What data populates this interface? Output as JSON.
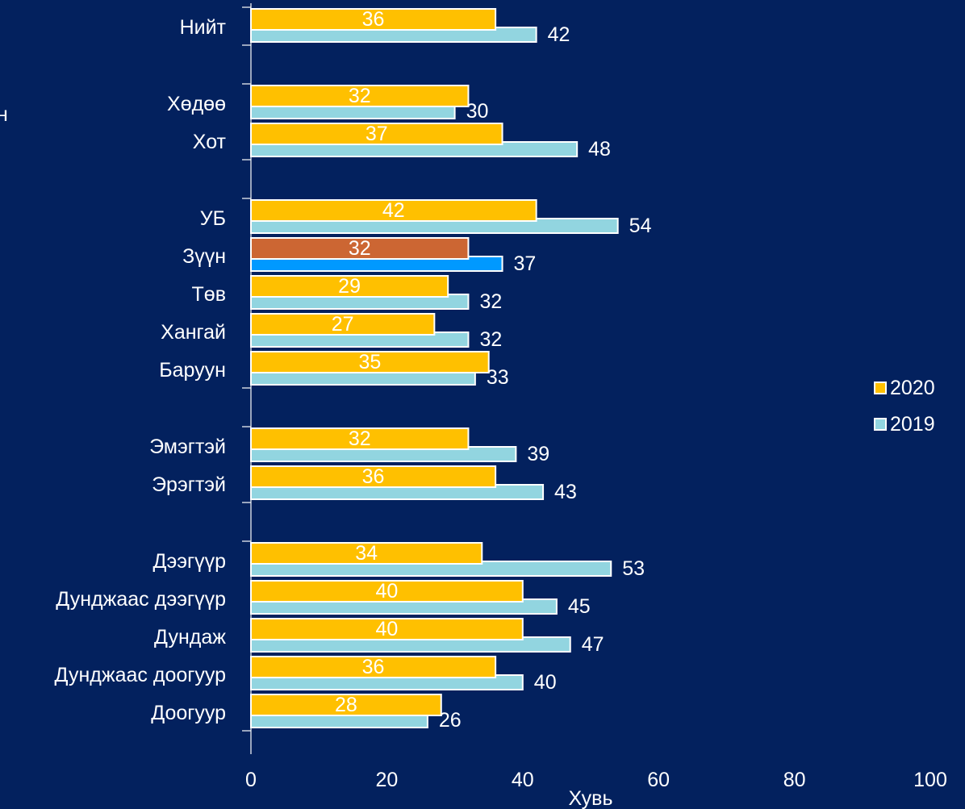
{
  "chart_data": {
    "type": "bar",
    "orientation": "horizontal",
    "categories": [
      "Нийт",
      "Хөдөө",
      "Хот",
      "УБ",
      "Зүүн",
      "Төв",
      "Хангай",
      "Баруун",
      "Эмэгтэй",
      "Эрэгтэй",
      "Дээгүүр",
      "Дунджаас дээгүүр",
      "Дундаж",
      "Дунджаас доогуур",
      "Доогуур"
    ],
    "groups": [
      [
        0
      ],
      [
        1,
        2
      ],
      [
        3,
        4,
        5,
        6,
        7
      ],
      [
        8,
        9
      ],
      [
        10,
        11,
        12,
        13,
        14
      ]
    ],
    "series": [
      {
        "name": "2020",
        "color": "#ffc000",
        "label_color": "#ffffff",
        "values": [
          36,
          32,
          37,
          42,
          32,
          29,
          27,
          35,
          32,
          36,
          34,
          40,
          40,
          36,
          28
        ]
      },
      {
        "name": "2019",
        "color": "#92d5e0",
        "label_color": "#ffffff",
        "values": [
          42,
          30,
          48,
          54,
          37,
          32,
          32,
          33,
          39,
          43,
          53,
          45,
          47,
          40,
          26
        ]
      }
    ],
    "highlight": {
      "category_index": 4,
      "colors": {
        "2020": "#cc6633",
        "2019": "#0099ff"
      }
    },
    "xlabel": "Хувь",
    "xlim": [
      0,
      100
    ],
    "xticks": [
      0,
      20,
      40,
      60,
      80,
      100
    ],
    "legend_position": "right"
  },
  "stray_text": "н"
}
